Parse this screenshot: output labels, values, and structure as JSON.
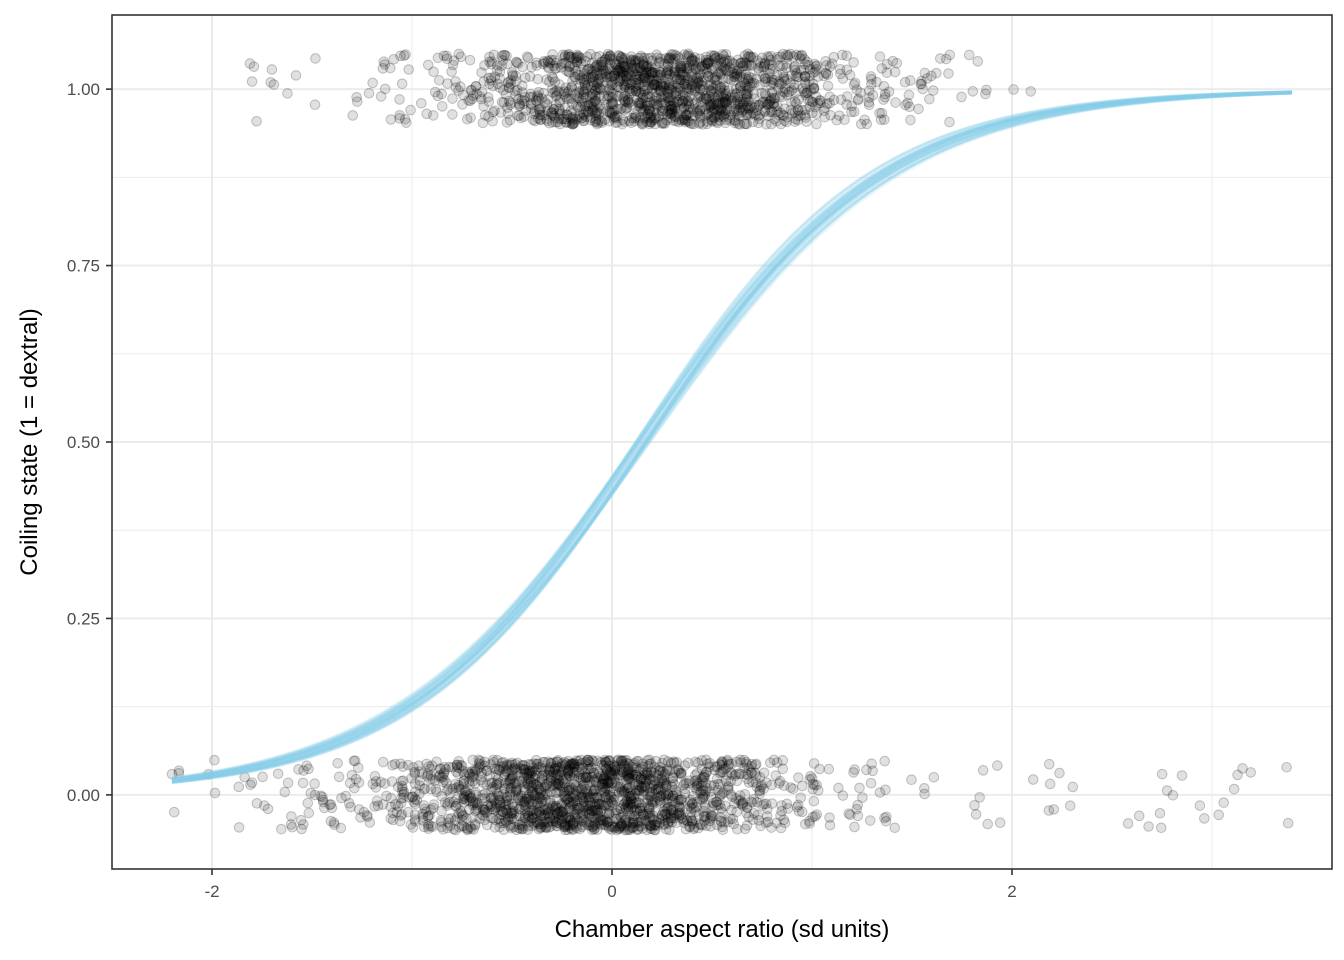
{
  "chart_data": {
    "type": "scatter",
    "title": "",
    "xlabel": "Chamber aspect ratio (sd units)",
    "ylabel": "Coiling state (1 = dextral)",
    "xlim": [
      -2.5,
      3.6
    ],
    "ylim": [
      -0.105,
      1.105
    ],
    "x_ticks": [
      -2,
      0,
      2
    ],
    "x_tick_labels": [
      "-2",
      "0",
      "2"
    ],
    "y_ticks": [
      0,
      0.25,
      0.5,
      0.75,
      1
    ],
    "y_tick_labels": [
      "0.00",
      "0.25",
      "0.50",
      "0.75",
      "1.00"
    ],
    "x_minor_ticks": [
      -1,
      1,
      3
    ],
    "y_minor_ticks": [
      0.125,
      0.375,
      0.625,
      0.875
    ],
    "grid": true,
    "theme": "bw",
    "colors": {
      "curve": "#87ceeb",
      "points": "#000000",
      "grid": "#ebebeb",
      "panel_border": "#333333"
    },
    "series": [
      {
        "type": "scatter",
        "note": "jittered observations (sinistral)",
        "y": 0,
        "y_jitter": 0.05,
        "x_range": [
          -2.2,
          3.4
        ],
        "point_alpha": 0.15,
        "dense_region_x": [
          -0.9,
          1.1
        ]
      },
      {
        "type": "scatter",
        "note": "jittered observations (dextral)",
        "y": 1,
        "y_jitter": 0.05,
        "x_range": [
          -1.8,
          2.1
        ],
        "point_alpha": 0.15,
        "dense_region_x": [
          -0.7,
          1.2
        ]
      },
      {
        "type": "line",
        "note": "posterior logistic curves",
        "intercept": -0.25,
        "slope": 1.65,
        "x_range": [
          -2.2,
          3.4
        ],
        "draws": 40
      }
    ]
  }
}
